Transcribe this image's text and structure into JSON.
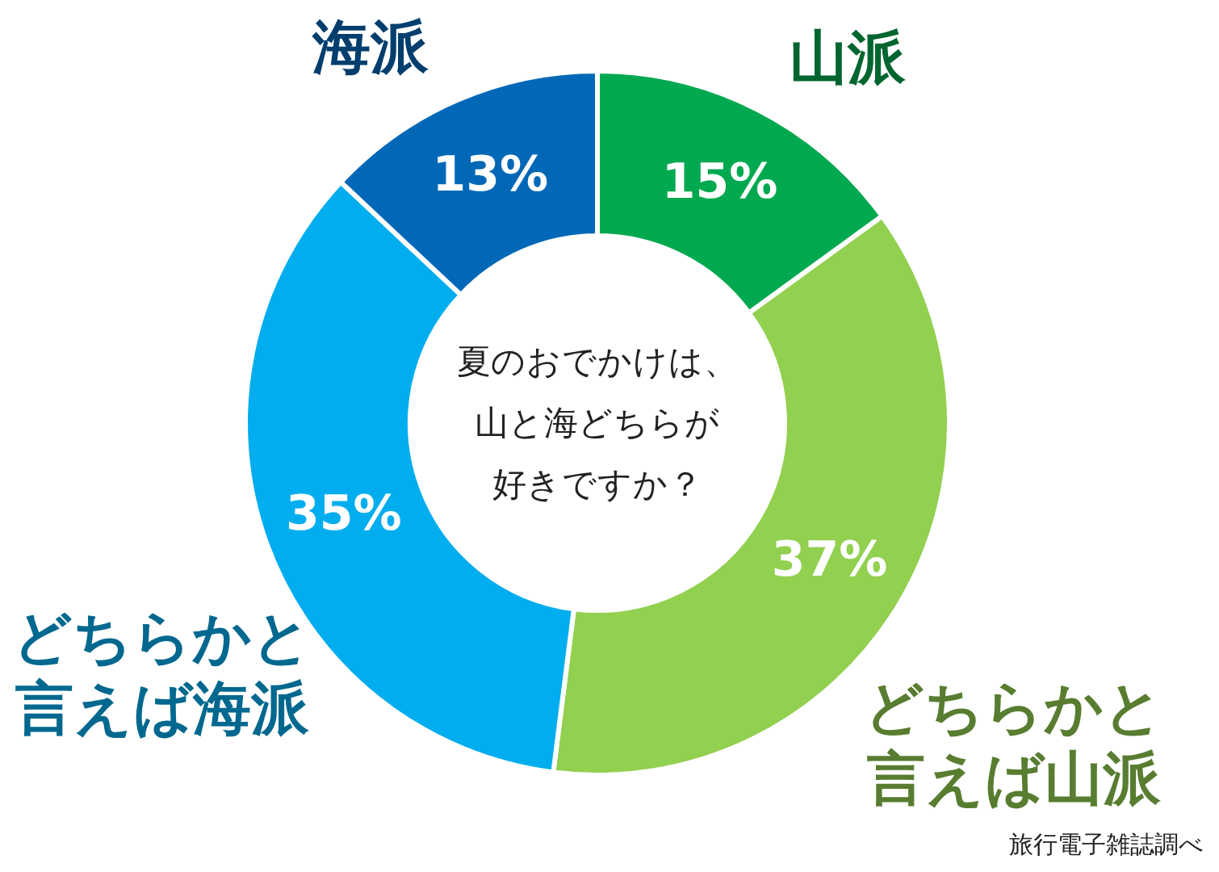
{
  "chart_data": {
    "type": "donut",
    "title": "夏のおでかけは、山と海どちらが好きですか？",
    "categories": [
      "山派",
      "どちらかと言えば山派",
      "どちらかと言えば海派",
      "海派"
    ],
    "values": [
      15,
      37,
      35,
      13
    ],
    "value_labels": [
      "15%",
      "37%",
      "35%",
      "13%"
    ],
    "colors": [
      "#00a94f",
      "#92d050",
      "#00adef",
      "#0068b7"
    ],
    "annotations": [
      "旅行電子雑誌調べ"
    ]
  }
}
